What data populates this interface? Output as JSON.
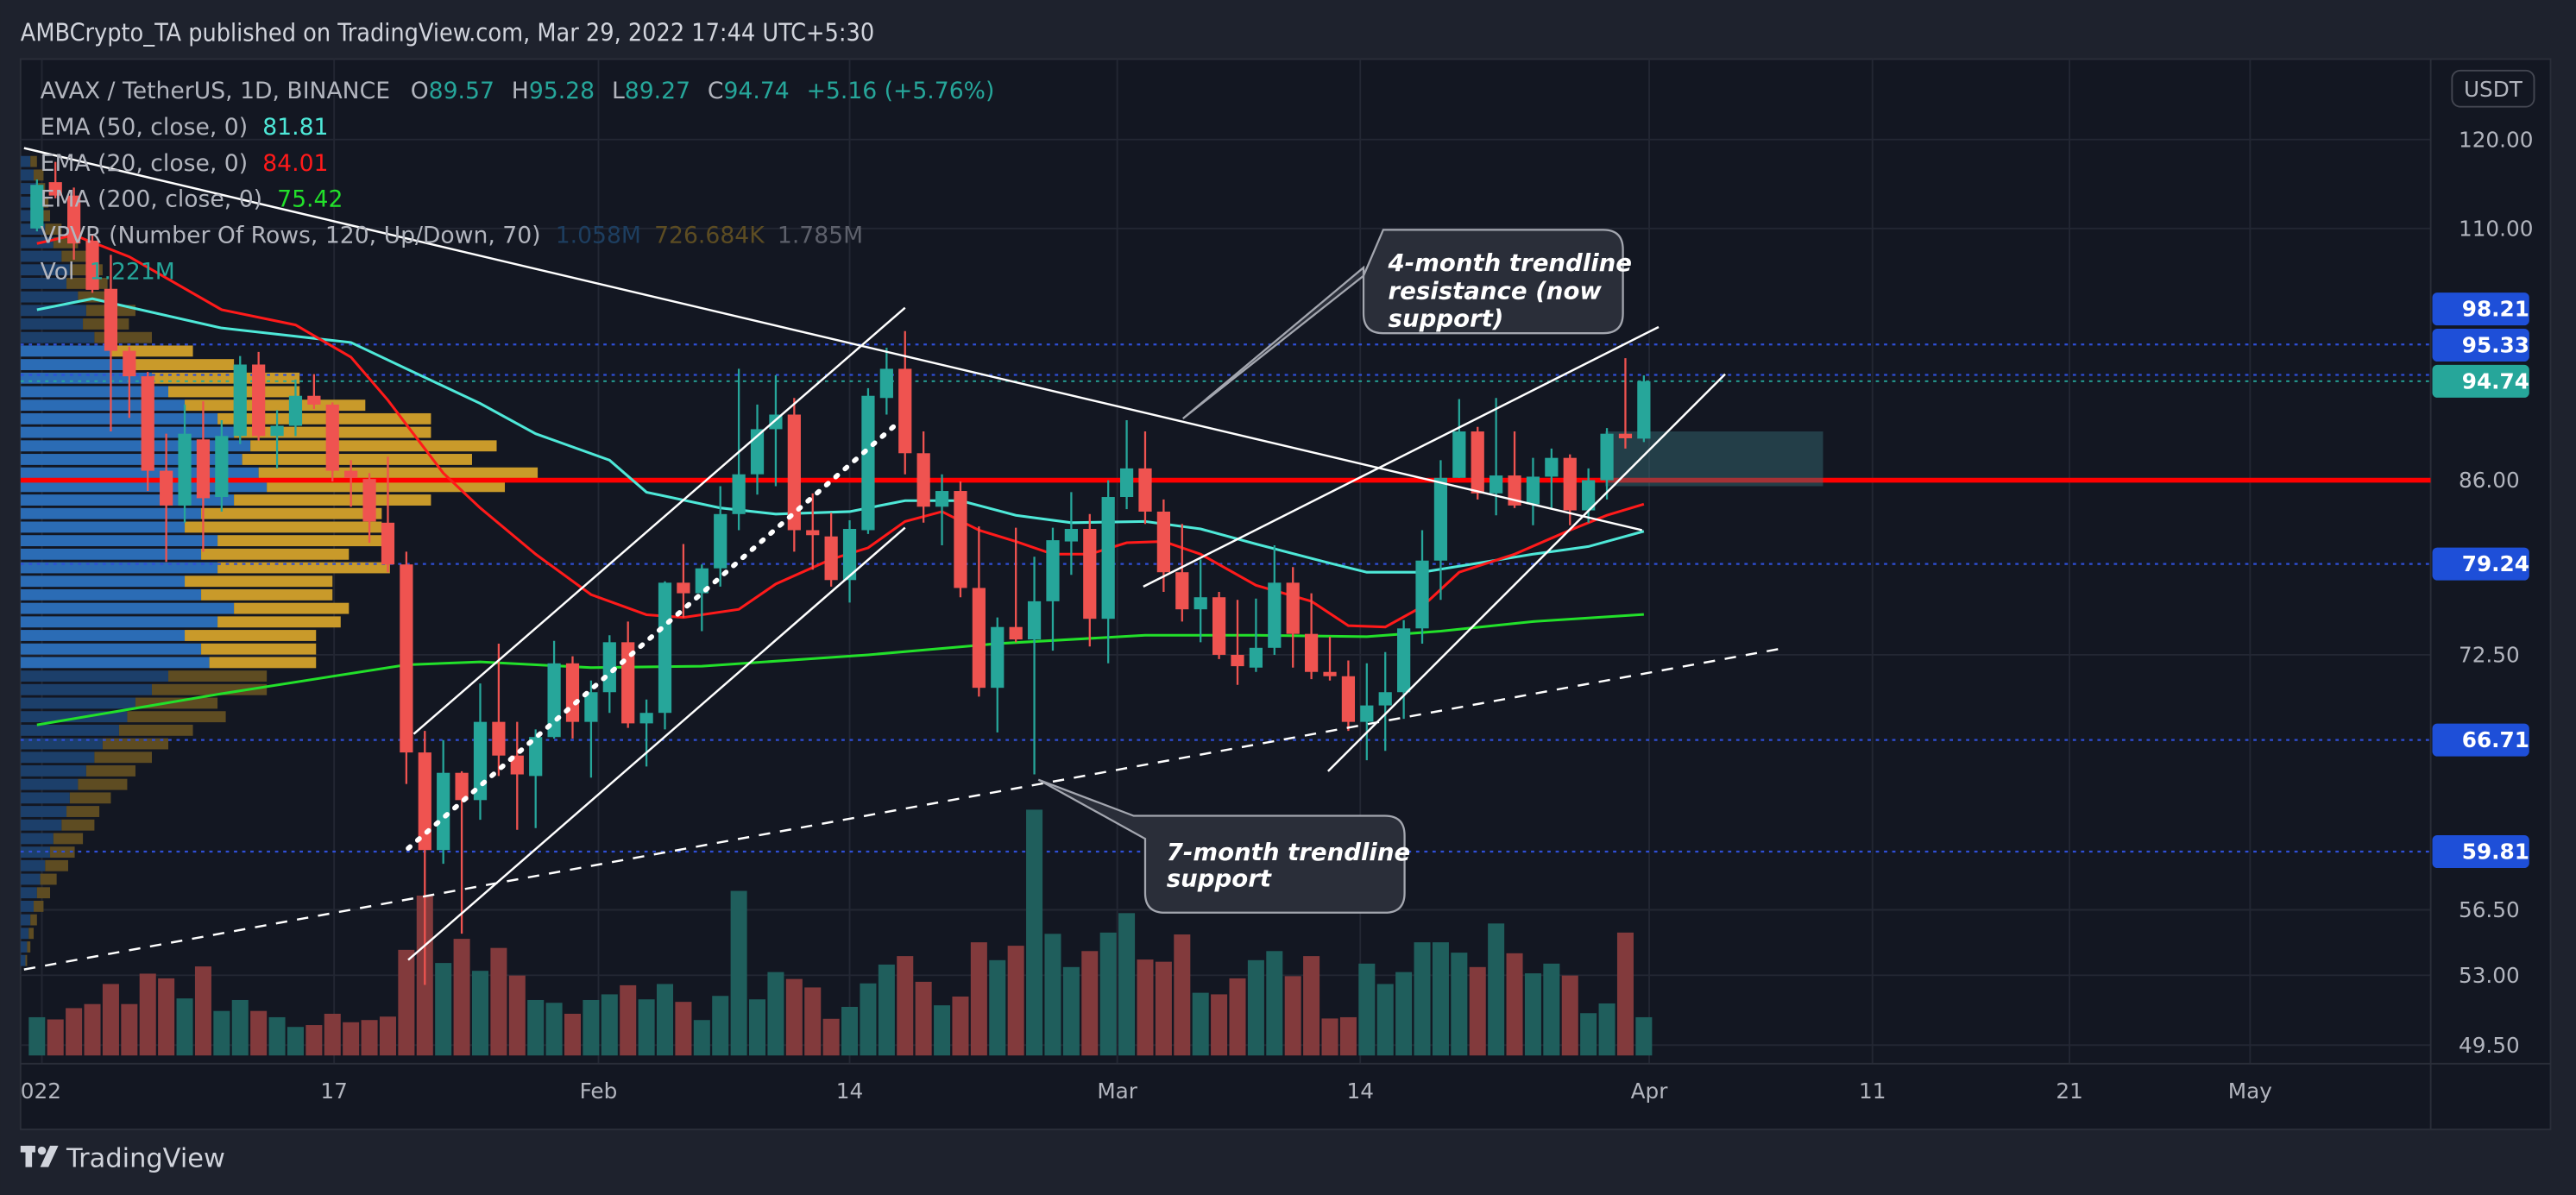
{
  "header": {
    "published": "AMBCrypto_TA published on TradingView.com, Mar 29, 2022 17:44 UTC+5:30"
  },
  "legend": {
    "symbol": "AVAX / TetherUS, 1D, BINANCE",
    "o_label": "O",
    "o": "89.57",
    "h_label": "H",
    "h": "95.28",
    "l_label": "L",
    "l": "89.27",
    "c_label": "C",
    "c": "94.74",
    "change": "+5.16 (+5.76%)",
    "ema50_label": "EMA (50, close, 0)",
    "ema50_value": "81.81",
    "ema20_label": "EMA (20, close, 0)",
    "ema20_value": "84.01",
    "ema200_label": "EMA (200, close, 0)",
    "ema200_value": "75.42",
    "vpvr_label": "VPVR (Number Of Rows, 120, Up/Down, 70)",
    "vpvr_up": "1.058M",
    "vpvr_down": "726.684K",
    "vpvr_total": "1.785M",
    "vol_label": "Vol",
    "vol_value": "1.221M"
  },
  "price_scale": {
    "currency": "USDT",
    "ticks": [
      "120.00",
      "110.00",
      "86.00",
      "72.50",
      "56.50",
      "53.00",
      "49.50"
    ],
    "level_labels": [
      "98.21",
      "95.33",
      "79.24",
      "66.71",
      "59.81"
    ],
    "last_price": "94.74"
  },
  "time_axis": {
    "labels": [
      "022",
      "17",
      "Feb",
      "14",
      "Mar",
      "14",
      "Apr",
      "11",
      "21",
      "May"
    ]
  },
  "annotations": {
    "resistance_callout": [
      "4-month trendline",
      "resistance (now",
      "support)"
    ],
    "support_callout": [
      "7-month trendline",
      "support"
    ]
  },
  "footer": {
    "brand": "TradingView"
  },
  "colors": {
    "up": "#26a69a",
    "down": "#ef5350",
    "ema50": "#4ee8d8",
    "ema20": "#ff1a1a",
    "ema200": "#22e02a",
    "key_level": "#ff0000",
    "level_label": "#1e4fd8",
    "background": "#131722"
  },
  "chart_data": {
    "type": "candlestick",
    "symbol": "AVAX/USDT",
    "interval": "1D",
    "y_scale": "log",
    "ylim": [
      49.5,
      120
    ],
    "x_start": "2022-01-01",
    "x_axis_end": "2022-05-10",
    "grid": true,
    "ohlc": [
      [
        110.0,
        115.4,
        109.7,
        114.8
      ],
      [
        115.1,
        117.4,
        113.3,
        113.6
      ],
      [
        113.6,
        114.5,
        106.7,
        108.4
      ],
      [
        108.7,
        109.3,
        103.3,
        103.6
      ],
      [
        103.7,
        107.2,
        90.2,
        97.6
      ],
      [
        97.6,
        98.0,
        91.4,
        95.2
      ],
      [
        95.2,
        95.6,
        85.1,
        86.8
      ],
      [
        86.8,
        90.0,
        79.4,
        83.9
      ],
      [
        83.9,
        92.6,
        82.5,
        90.0
      ],
      [
        89.5,
        92.9,
        80.2,
        84.5
      ],
      [
        84.6,
        91.2,
        83.4,
        89.8
      ],
      [
        89.8,
        97.1,
        89.1,
        96.3
      ],
      [
        96.3,
        97.5,
        89.4,
        89.8
      ],
      [
        89.8,
        92.1,
        87.0,
        90.7
      ],
      [
        90.7,
        94.9,
        89.8,
        93.4
      ],
      [
        93.4,
        95.4,
        92.2,
        92.6
      ],
      [
        92.6,
        92.8,
        85.9,
        86.8
      ],
      [
        86.8,
        87.7,
        83.8,
        86.2
      ],
      [
        86.1,
        86.6,
        80.9,
        82.6
      ],
      [
        82.5,
        88.0,
        78.6,
        79.2
      ],
      [
        79.2,
        80.2,
        63.9,
        65.9
      ],
      [
        65.9,
        67.3,
        52.5,
        59.9
      ],
      [
        59.9,
        66.7,
        59.1,
        64.6
      ],
      [
        64.6,
        64.7,
        55.2,
        62.9
      ],
      [
        62.9,
        70.5,
        61.7,
        67.9
      ],
      [
        67.9,
        73.3,
        64.4,
        65.7
      ],
      [
        65.7,
        67.9,
        61.1,
        64.5
      ],
      [
        64.4,
        67.4,
        61.2,
        66.9
      ],
      [
        66.9,
        73.5,
        66.8,
        71.9
      ],
      [
        71.9,
        72.4,
        66.8,
        67.9
      ],
      [
        67.9,
        70.7,
        64.3,
        69.9
      ],
      [
        69.9,
        73.9,
        68.5,
        73.4
      ],
      [
        73.4,
        74.9,
        67.5,
        67.8
      ],
      [
        67.8,
        69.4,
        65.0,
        68.5
      ],
      [
        68.5,
        77.9,
        67.4,
        77.8
      ],
      [
        77.8,
        80.8,
        75.2,
        77.0
      ],
      [
        77.0,
        79.2,
        74.2,
        78.9
      ],
      [
        78.9,
        85.5,
        77.5,
        83.2
      ],
      [
        83.2,
        95.9,
        81.9,
        86.5
      ],
      [
        86.5,
        92.6,
        84.8,
        90.4
      ],
      [
        90.4,
        95.3,
        85.5,
        91.7
      ],
      [
        91.7,
        93.2,
        80.2,
        81.9
      ],
      [
        81.9,
        84.9,
        78.8,
        81.5
      ],
      [
        81.4,
        83.3,
        77.5,
        78.0
      ],
      [
        78.0,
        82.7,
        76.3,
        82.0
      ],
      [
        81.9,
        94.1,
        81.6,
        93.4
      ],
      [
        93.2,
        97.9,
        91.7,
        95.9
      ],
      [
        95.9,
        99.5,
        86.5,
        88.3
      ],
      [
        88.3,
        90.2,
        82.5,
        83.8
      ],
      [
        83.8,
        86.5,
        80.7,
        85.1
      ],
      [
        85.1,
        85.9,
        76.7,
        77.4
      ],
      [
        77.4,
        82.2,
        69.6,
        70.2
      ],
      [
        70.2,
        75.2,
        67.2,
        74.5
      ],
      [
        74.5,
        82.1,
        73.4,
        73.6
      ],
      [
        73.6,
        79.8,
        64.5,
        76.4
      ],
      [
        76.4,
        82.1,
        72.8,
        81.1
      ],
      [
        81.0,
        85.0,
        78.4,
        82.0
      ],
      [
        82.0,
        83.2,
        73.1,
        75.1
      ],
      [
        75.1,
        86.0,
        71.9,
        84.6
      ],
      [
        84.6,
        91.2,
        83.6,
        87.0
      ],
      [
        87.0,
        90.2,
        82.4,
        83.4
      ],
      [
        83.4,
        84.4,
        77.1,
        78.6
      ],
      [
        78.6,
        82.4,
        74.9,
        75.8
      ],
      [
        75.8,
        79.6,
        73.4,
        76.7
      ],
      [
        76.7,
        77.1,
        72.2,
        72.5
      ],
      [
        72.5,
        76.5,
        70.4,
        71.7
      ],
      [
        71.6,
        76.6,
        71.3,
        73.0
      ],
      [
        73.0,
        80.7,
        72.5,
        77.8
      ],
      [
        77.8,
        79.0,
        71.6,
        74.0
      ],
      [
        74.0,
        77.0,
        70.8,
        71.3
      ],
      [
        71.3,
        73.8,
        70.7,
        71.0
      ],
      [
        71.0,
        72.1,
        67.3,
        67.9
      ],
      [
        67.9,
        71.9,
        65.4,
        69.0
      ],
      [
        69.0,
        72.7,
        66.0,
        69.9
      ],
      [
        69.9,
        75.0,
        68.1,
        74.4
      ],
      [
        74.4,
        81.9,
        73.3,
        79.5
      ],
      [
        79.5,
        87.7,
        76.5,
        86.2
      ],
      [
        86.2,
        93.1,
        86.2,
        90.2
      ],
      [
        90.2,
        90.6,
        84.4,
        84.9
      ],
      [
        84.9,
        93.2,
        83.1,
        86.4
      ],
      [
        86.4,
        90.2,
        83.7,
        83.9
      ],
      [
        84.0,
        87.9,
        82.3,
        86.3
      ],
      [
        86.3,
        88.7,
        83.7,
        87.9
      ],
      [
        87.9,
        88.2,
        82.3,
        83.5
      ],
      [
        83.5,
        87.0,
        82.5,
        86.0
      ],
      [
        86.0,
        90.5,
        84.4,
        90.0
      ],
      [
        90.0,
        96.9,
        88.7,
        89.6
      ],
      [
        89.57,
        95.28,
        89.27,
        94.74
      ]
    ],
    "volume_millions": [
      1.22,
      1.15,
      1.51,
      1.64,
      2.28,
      1.64,
      2.61,
      2.46,
      1.82,
      2.84,
      1.42,
      1.77,
      1.42,
      1.22,
      0.91,
      0.97,
      1.33,
      1.06,
      1.13,
      1.24,
      3.37,
      5.1,
      2.95,
      3.72,
      2.7,
      3.43,
      2.55,
      1.77,
      1.68,
      1.33,
      1.77,
      1.95,
      2.24,
      1.79,
      2.28,
      1.71,
      1.13,
      1.9,
      5.25,
      1.79,
      2.66,
      2.44,
      2.17,
      1.17,
      1.55,
      2.3,
      2.9,
      3.17,
      2.35,
      1.6,
      1.88,
      3.61,
      3.04,
      3.5,
      7.84,
      3.88,
      2.82,
      3.33,
      3.92,
      4.54,
      3.06,
      2.99,
      3.86,
      2.0,
      1.95,
      2.46,
      3.04,
      3.33,
      2.53,
      3.17,
      1.18,
      1.22,
      2.93,
      2.28,
      2.66,
      3.61,
      3.61,
      3.28,
      2.82,
      4.21,
      3.26,
      2.62,
      2.93,
      2.55,
      1.35,
      1.66,
      3.92,
      1.22
    ],
    "ema50": [
      [
        0,
        101.6
      ],
      [
        3,
        102.7
      ],
      [
        10,
        99.8
      ],
      [
        17,
        98.4
      ],
      [
        20,
        95.9
      ],
      [
        24,
        92.7
      ],
      [
        27,
        90.0
      ],
      [
        31,
        87.7
      ],
      [
        33,
        85.0
      ],
      [
        37,
        83.7
      ],
      [
        40,
        83.2
      ],
      [
        44,
        83.4
      ],
      [
        47,
        84.3
      ],
      [
        50,
        84.3
      ],
      [
        53,
        83.1
      ],
      [
        56,
        82.5
      ],
      [
        60,
        82.6
      ],
      [
        63,
        82.0
      ],
      [
        66,
        80.8
      ],
      [
        70,
        79.3
      ],
      [
        72,
        78.6
      ],
      [
        75,
        78.6
      ],
      [
        78,
        79.3
      ],
      [
        81,
        80.0
      ],
      [
        84,
        80.6
      ],
      [
        87,
        81.81
      ]
    ],
    "ema20": [
      [
        0,
        108.4
      ],
      [
        2,
        109.3
      ],
      [
        5,
        107.0
      ],
      [
        10,
        101.6
      ],
      [
        14,
        100.1
      ],
      [
        17,
        97.0
      ],
      [
        19,
        93.0
      ],
      [
        22,
        86.6
      ],
      [
        24,
        83.7
      ],
      [
        27,
        80.0
      ],
      [
        30,
        76.9
      ],
      [
        33,
        75.4
      ],
      [
        35,
        75.2
      ],
      [
        38,
        75.8
      ],
      [
        40,
        77.7
      ],
      [
        43,
        79.6
      ],
      [
        45,
        80.5
      ],
      [
        47,
        82.6
      ],
      [
        49,
        83.4
      ],
      [
        51,
        81.9
      ],
      [
        53,
        81.0
      ],
      [
        55,
        80.0
      ],
      [
        57,
        80.0
      ],
      [
        59,
        80.9
      ],
      [
        61,
        81.0
      ],
      [
        63,
        80.0
      ],
      [
        66,
        77.6
      ],
      [
        69,
        76.4
      ],
      [
        71,
        74.6
      ],
      [
        73,
        74.5
      ],
      [
        75,
        76.0
      ],
      [
        77,
        78.6
      ],
      [
        80,
        80.0
      ],
      [
        83,
        81.9
      ],
      [
        85,
        83.1
      ],
      [
        87,
        84.01
      ]
    ],
    "ema200": [
      [
        0,
        67.7
      ],
      [
        10,
        69.8
      ],
      [
        20,
        71.8
      ],
      [
        24,
        72.0
      ],
      [
        30,
        71.6
      ],
      [
        36,
        71.7
      ],
      [
        45,
        72.5
      ],
      [
        52,
        73.3
      ],
      [
        60,
        73.9
      ],
      [
        66,
        73.9
      ],
      [
        72,
        73.8
      ],
      [
        76,
        74.2
      ],
      [
        81,
        74.9
      ],
      [
        87,
        75.42
      ]
    ],
    "horizontal_levels": {
      "key_level": 86.0,
      "dotted": [
        98.21,
        95.33,
        79.24,
        66.71,
        59.81
      ],
      "last_price": 94.74
    },
    "trendlines": {
      "four_month_resistance": [
        [
          -0.7,
          119.0
        ],
        [
          86.9,
          81.9
        ]
      ],
      "seven_month_support": [
        [
          -0.7,
          53.3
        ],
        [
          94.5,
          72.96
        ]
      ],
      "feb_channel_upper": [
        [
          20.4,
          67.1
        ],
        [
          47.0,
          101.8
        ]
      ],
      "feb_channel_lower": [
        [
          20.1,
          53.8
        ],
        [
          47.0,
          82.1
        ]
      ],
      "feb_channel_mid": [
        [
          20.1,
          60.0
        ],
        [
          46.5,
          90.8
        ]
      ],
      "mar_channel_upper": [
        [
          59.9,
          77.5
        ],
        [
          87.8,
          99.9
        ]
      ],
      "mar_channel_lower": [
        [
          69.9,
          64.7
        ],
        [
          91.4,
          95.4
        ]
      ]
    },
    "support_zone": {
      "from_day": 84.9,
      "to_day": 96.7,
      "price_high": 90.2,
      "price_low": 85.5
    },
    "vpvr_rows_up_down": [
      [
        60,
        40
      ],
      [
        80,
        60
      ],
      [
        100,
        50
      ],
      [
        90,
        80
      ],
      [
        120,
        60
      ],
      [
        150,
        100
      ],
      [
        200,
        150
      ],
      [
        250,
        180
      ],
      [
        300,
        200
      ],
      [
        280,
        250
      ],
      [
        350,
        220
      ],
      [
        400,
        300
      ],
      [
        380,
        280
      ],
      [
        450,
        350
      ],
      [
        550,
        500
      ],
      [
        700,
        600
      ],
      [
        800,
        900
      ],
      [
        900,
        800
      ],
      [
        1000,
        1100
      ],
      [
        1200,
        1300
      ],
      [
        1300,
        1200
      ],
      [
        1400,
        1500
      ],
      [
        1350,
        1400
      ],
      [
        1450,
        1700
      ],
      [
        1500,
        1450
      ],
      [
        1300,
        1200
      ],
      [
        1100,
        1100
      ],
      [
        1000,
        1200
      ],
      [
        1200,
        1000
      ],
      [
        1100,
        900
      ],
      [
        1200,
        1050
      ],
      [
        1000,
        900
      ],
      [
        1100,
        800
      ],
      [
        1300,
        700
      ],
      [
        1200,
        750
      ],
      [
        1000,
        800
      ],
      [
        1100,
        700
      ],
      [
        1150,
        650
      ],
      [
        900,
        600
      ],
      [
        800,
        700
      ],
      [
        700,
        500
      ],
      [
        650,
        600
      ],
      [
        600,
        450
      ],
      [
        500,
        400
      ],
      [
        450,
        350
      ],
      [
        400,
        300
      ],
      [
        350,
        300
      ],
      [
        300,
        250
      ],
      [
        280,
        200
      ],
      [
        250,
        200
      ],
      [
        200,
        180
      ],
      [
        180,
        150
      ],
      [
        150,
        140
      ],
      [
        120,
        100
      ],
      [
        100,
        80
      ],
      [
        80,
        60
      ],
      [
        60,
        40
      ],
      [
        50,
        30
      ],
      [
        40,
        20
      ],
      [
        30,
        10
      ]
    ]
  }
}
